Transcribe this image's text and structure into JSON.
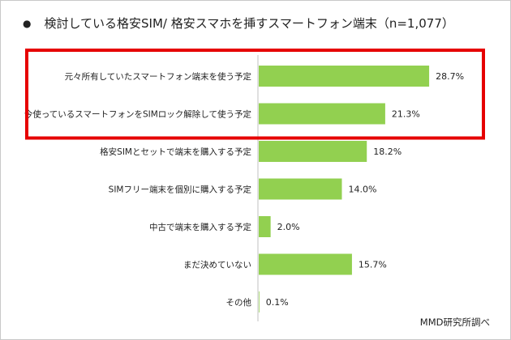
{
  "title": "検討している格安SIM/ 格安スマホを挿すスマートフォン端末（n=1,077）",
  "source": "MMD研究所調べ",
  "colors": {
    "bar": "#92d050",
    "highlight": "#e60000",
    "axis": "#c0c0c0"
  },
  "chart_data": {
    "type": "bar",
    "orientation": "horizontal",
    "title": "検討している格安SIM/ 格安スマホを挿すスマートフォン端末（n=1,077）",
    "categories": [
      "元々所有していたスマートフォン端末を使う予定",
      "今使っているスマートフォンをSIMロック解除して使う予定",
      "格安SIMとセットで端末を購入する予定",
      "SIMフリー端末を個別に購入する予定",
      "中古で端末を購入する予定",
      "まだ決めていない",
      "その他"
    ],
    "values": [
      28.7,
      21.3,
      18.2,
      14.0,
      2.0,
      15.7,
      0.1
    ],
    "value_labels": [
      "28.7%",
      "21.3%",
      "18.2%",
      "14.0%",
      "2.0%",
      "15.7%",
      "0.1%"
    ],
    "highlighted_categories": [
      0,
      1
    ],
    "xlim": [
      0,
      40
    ],
    "grid": false
  }
}
